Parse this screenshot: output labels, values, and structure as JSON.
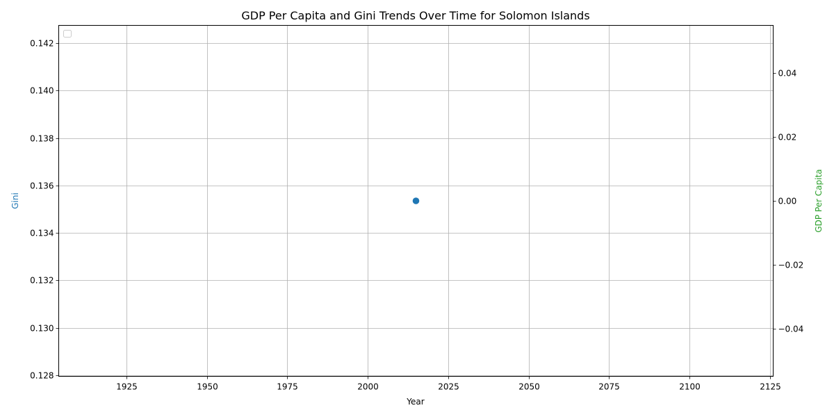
{
  "chart_data": {
    "type": "scatter",
    "title": "GDP Per Capita and Gini Trends Over Time for Solomon Islands",
    "xlabel": "Year",
    "ylabel_left": "Gini",
    "ylabel_right": "GDP Per Capita",
    "xlim": [
      1904,
      2126
    ],
    "ylim_left": [
      0.12795,
      0.14275
    ],
    "ylim_right": [
      -0.055,
      0.055
    ],
    "x_ticks": [
      1925,
      1950,
      1975,
      2000,
      2025,
      2050,
      2075,
      2100,
      2125
    ],
    "y_ticks_left": [
      0.128,
      0.13,
      0.132,
      0.134,
      0.136,
      0.138,
      0.14,
      0.142
    ],
    "y_ticks_right": [
      -0.04,
      -0.02,
      0.0,
      0.02,
      0.04
    ],
    "y_tick_labels_left": [
      "0.128",
      "0.130",
      "0.132",
      "0.134",
      "0.136",
      "0.138",
      "0.140",
      "0.142"
    ],
    "y_tick_labels_right": [
      "−0.04",
      "−0.02",
      "0.00",
      "0.02",
      "0.04"
    ],
    "grid": true,
    "legend_placement": "top-left",
    "series": [
      {
        "axis": "left",
        "color": "#1f77b4",
        "x": [
          2015
        ],
        "y": [
          0.13535
        ]
      }
    ],
    "colors": {
      "left_label": "#1f77b4",
      "right_label": "#2ca02c"
    }
  }
}
